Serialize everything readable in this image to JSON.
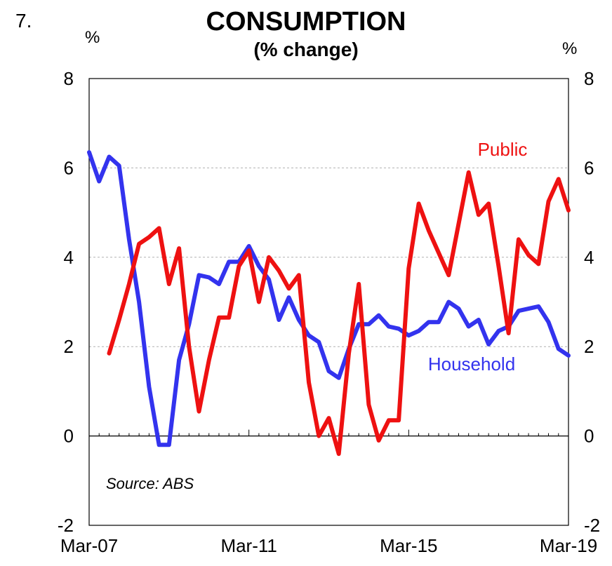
{
  "figure_number": "7.",
  "colors": {
    "household": "#3333ee",
    "public": "#ee1111",
    "grid": "#b0b0b0",
    "axis": "#000000"
  },
  "chart_data": {
    "type": "line",
    "title": "CONSUMPTION",
    "subtitle": "(% change)",
    "ylabel_left": "%",
    "ylabel_right": "%",
    "ylim": [
      -2,
      8
    ],
    "yticks": [
      -2,
      0,
      2,
      4,
      6,
      8
    ],
    "xlim": [
      0,
      48
    ],
    "xticks": [
      {
        "label": "Mar-07",
        "index": 0
      },
      {
        "label": "Mar-11",
        "index": 16
      },
      {
        "label": "Mar-15",
        "index": 32
      },
      {
        "label": "Mar-19",
        "index": 48
      }
    ],
    "gridlines": [
      2,
      4,
      6
    ],
    "source": "Source: ABS",
    "series": [
      {
        "name": "Household",
        "color": "#3333ee",
        "start_index": 0,
        "values": [
          6.35,
          5.7,
          6.25,
          6.05,
          4.4,
          3.0,
          1.1,
          -0.2,
          -0.2,
          1.7,
          2.5,
          3.6,
          3.55,
          3.4,
          3.9,
          3.9,
          4.25,
          3.8,
          3.5,
          2.6,
          3.1,
          2.6,
          2.25,
          2.1,
          1.45,
          1.3,
          1.95,
          2.5,
          2.5,
          2.7,
          2.45,
          2.4,
          2.25,
          2.35,
          2.55,
          2.55,
          3.0,
          2.85,
          2.45,
          2.6,
          2.05,
          2.35,
          2.45,
          2.8,
          2.85,
          2.9,
          2.55,
          1.95,
          1.8
        ]
      },
      {
        "name": "Public",
        "color": "#ee1111",
        "start_index": 2,
        "values": [
          1.85,
          2.6,
          3.4,
          4.3,
          4.45,
          4.65,
          3.4,
          4.2,
          2.0,
          0.55,
          1.7,
          2.65,
          2.65,
          3.8,
          4.15,
          3.0,
          4.0,
          3.7,
          3.3,
          3.6,
          1.2,
          0.0,
          0.4,
          -0.4,
          1.85,
          3.4,
          0.7,
          -0.1,
          0.35,
          0.35,
          3.75,
          5.2,
          4.6,
          4.1,
          3.6,
          4.75,
          5.9,
          4.95,
          5.2,
          3.8,
          2.3,
          4.4,
          4.05,
          3.85,
          5.25,
          5.75,
          5.05
        ]
      }
    ],
    "series_labels": [
      {
        "text": "Public",
        "series": "Public"
      },
      {
        "text": "Household",
        "series": "Household"
      }
    ]
  }
}
